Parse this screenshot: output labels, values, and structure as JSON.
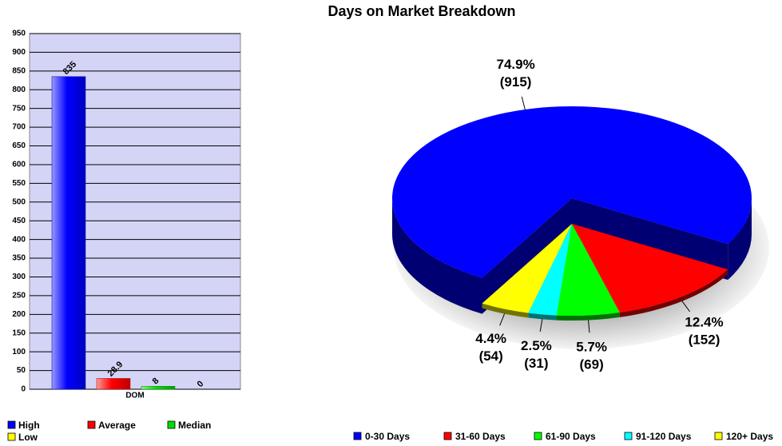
{
  "title": "Days on Market Breakdown",
  "chart_data": [
    {
      "type": "bar",
      "categories": [
        "DOM"
      ],
      "series": [
        {
          "name": "High",
          "color": "#0000ff",
          "values": [
            835
          ]
        },
        {
          "name": "Average",
          "color": "#ff0000",
          "values": [
            28.9
          ]
        },
        {
          "name": "Median",
          "color": "#00dd00",
          "values": [
            8
          ]
        },
        {
          "name": "Low",
          "color": "#ffff00",
          "values": [
            0
          ]
        }
      ],
      "ylim": [
        0,
        950
      ],
      "yticks": [
        0,
        50,
        100,
        150,
        200,
        250,
        300,
        350,
        400,
        450,
        500,
        550,
        600,
        650,
        700,
        750,
        800,
        850,
        900,
        950
      ],
      "grid": true,
      "background": "#d4d4f7"
    },
    {
      "type": "pie",
      "categories": [
        "0-30 Days",
        "31-60 Days",
        "61-90 Days",
        "91-120 Days",
        "120+ Days"
      ],
      "values": [
        915,
        152,
        69,
        31,
        54
      ],
      "value_labels": [
        "(915)",
        "(152)",
        "(69)",
        "(31)",
        "(54)"
      ],
      "percent_labels": [
        "74.9%",
        "12.4%",
        "5.7%",
        "2.5%",
        "4.4%"
      ],
      "colors": [
        "#0000ff",
        "#ff0000",
        "#00ff00",
        "#00ffff",
        "#ffff00"
      ]
    }
  ]
}
